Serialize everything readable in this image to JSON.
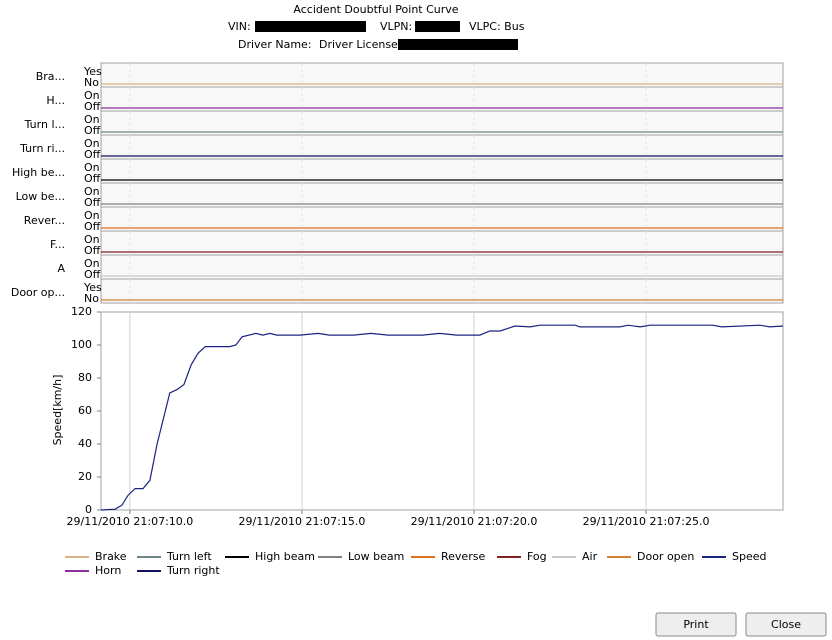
{
  "header": {
    "title": "Accident Doubtful Point Curve",
    "vin": "VIN:",
    "vlpn": "VLPN:",
    "vlpc": "VLPC: Bus",
    "driver_name": "Driver Name:",
    "driver_license": "Driver License:"
  },
  "signals": [
    {
      "label": "Bra...",
      "states": [
        "Yes",
        "No"
      ],
      "color": "#d4b483",
      "value": 0
    },
    {
      "label": "H...",
      "states": [
        "On",
        "Off"
      ],
      "color": "#8b2fa0",
      "value": 0
    },
    {
      "label": "Turn l...",
      "states": [
        "On",
        "Off"
      ],
      "color": "#6f8585",
      "value": 0
    },
    {
      "label": "Turn ri...",
      "states": [
        "On",
        "Off"
      ],
      "color": "#101060",
      "value": 0
    },
    {
      "label": "High be...",
      "states": [
        "On",
        "Off"
      ],
      "color": "#000000",
      "value": 0
    },
    {
      "label": "Low be...",
      "states": [
        "On",
        "Off"
      ],
      "color": "#808080",
      "value": 0
    },
    {
      "label": "Rever...",
      "states": [
        "On",
        "Off"
      ],
      "color": "#e07020",
      "value": 0
    },
    {
      "label": "F...",
      "states": [
        "On",
        "Off"
      ],
      "color": "#802020",
      "value": 0
    },
    {
      "label": "A",
      "states": [
        "On",
        "Off"
      ],
      "color": "#c8c8c8",
      "value": 0
    },
    {
      "label": "Door op...",
      "states": [
        "Yes",
        "No"
      ],
      "color": "#d08030",
      "value": 0
    }
  ],
  "chart_data": {
    "type": "line",
    "y_label": "Speed[km/h]",
    "color": "#1a237e",
    "x": [
      9.16,
      9.57,
      9.77,
      9.95,
      10.15,
      10.38,
      10.58,
      10.79,
      11.16,
      11.37,
      11.57,
      11.78,
      11.98,
      12.19,
      12.91,
      13.08,
      13.26,
      13.66,
      13.86,
      14.07,
      14.27,
      14.94,
      15.47,
      15.8,
      16.5,
      17.0,
      17.5,
      18.0,
      18.5,
      19.0,
      19.5,
      20.17,
      20.46,
      20.76,
      21.19,
      21.63,
      21.92,
      22.94,
      23.08,
      24.24,
      24.48,
      24.83,
      25.12,
      25.55,
      26.93,
      27.2,
      28.31,
      28.6,
      28.98
    ],
    "values": [
      0,
      0.5,
      3,
      9,
      13,
      13,
      18,
      40,
      71,
      73,
      76,
      88,
      95,
      99,
      99,
      100,
      105,
      107,
      106,
      107,
      106,
      106,
      107,
      106,
      106,
      107,
      106,
      106,
      106,
      107,
      106,
      106,
      108.5,
      108.5,
      111.5,
      111,
      112,
      112,
      111,
      111,
      112,
      111,
      112,
      112,
      112,
      111,
      112,
      111,
      111.5
    ],
    "xlim": [
      9.16,
      28.98
    ],
    "ylim": [
      0,
      120
    ],
    "xticks": [
      {
        "value": 10,
        "label": "29/11/2010 21:07:10.0"
      },
      {
        "value": 15,
        "label": "29/11/2010 21:07:15.0"
      },
      {
        "value": 20,
        "label": "29/11/2010 21:07:20.0"
      },
      {
        "value": 25,
        "label": "29/11/2010 21:07:25.0"
      }
    ],
    "yticks": [
      0,
      20,
      40,
      60,
      80,
      100,
      120
    ],
    "xgrid": true
  },
  "legend": [
    {
      "name": "Brake",
      "color": "#d4b483"
    },
    {
      "name": "Turn left",
      "color": "#6f8585"
    },
    {
      "name": "High beam",
      "color": "#000000"
    },
    {
      "name": "Low beam",
      "color": "#808080"
    },
    {
      "name": "Reverse",
      "color": "#e07020"
    },
    {
      "name": "Fog",
      "color": "#802020"
    },
    {
      "name": "Air",
      "color": "#c8c8c8"
    },
    {
      "name": "Door open",
      "color": "#d08030"
    },
    {
      "name": "Speed",
      "color": "#1a237e"
    },
    {
      "name": "Horn",
      "color": "#8b2fa0"
    },
    {
      "name": "Turn right",
      "color": "#101060"
    }
  ],
  "buttons": {
    "print": "Print",
    "close": "Close"
  }
}
